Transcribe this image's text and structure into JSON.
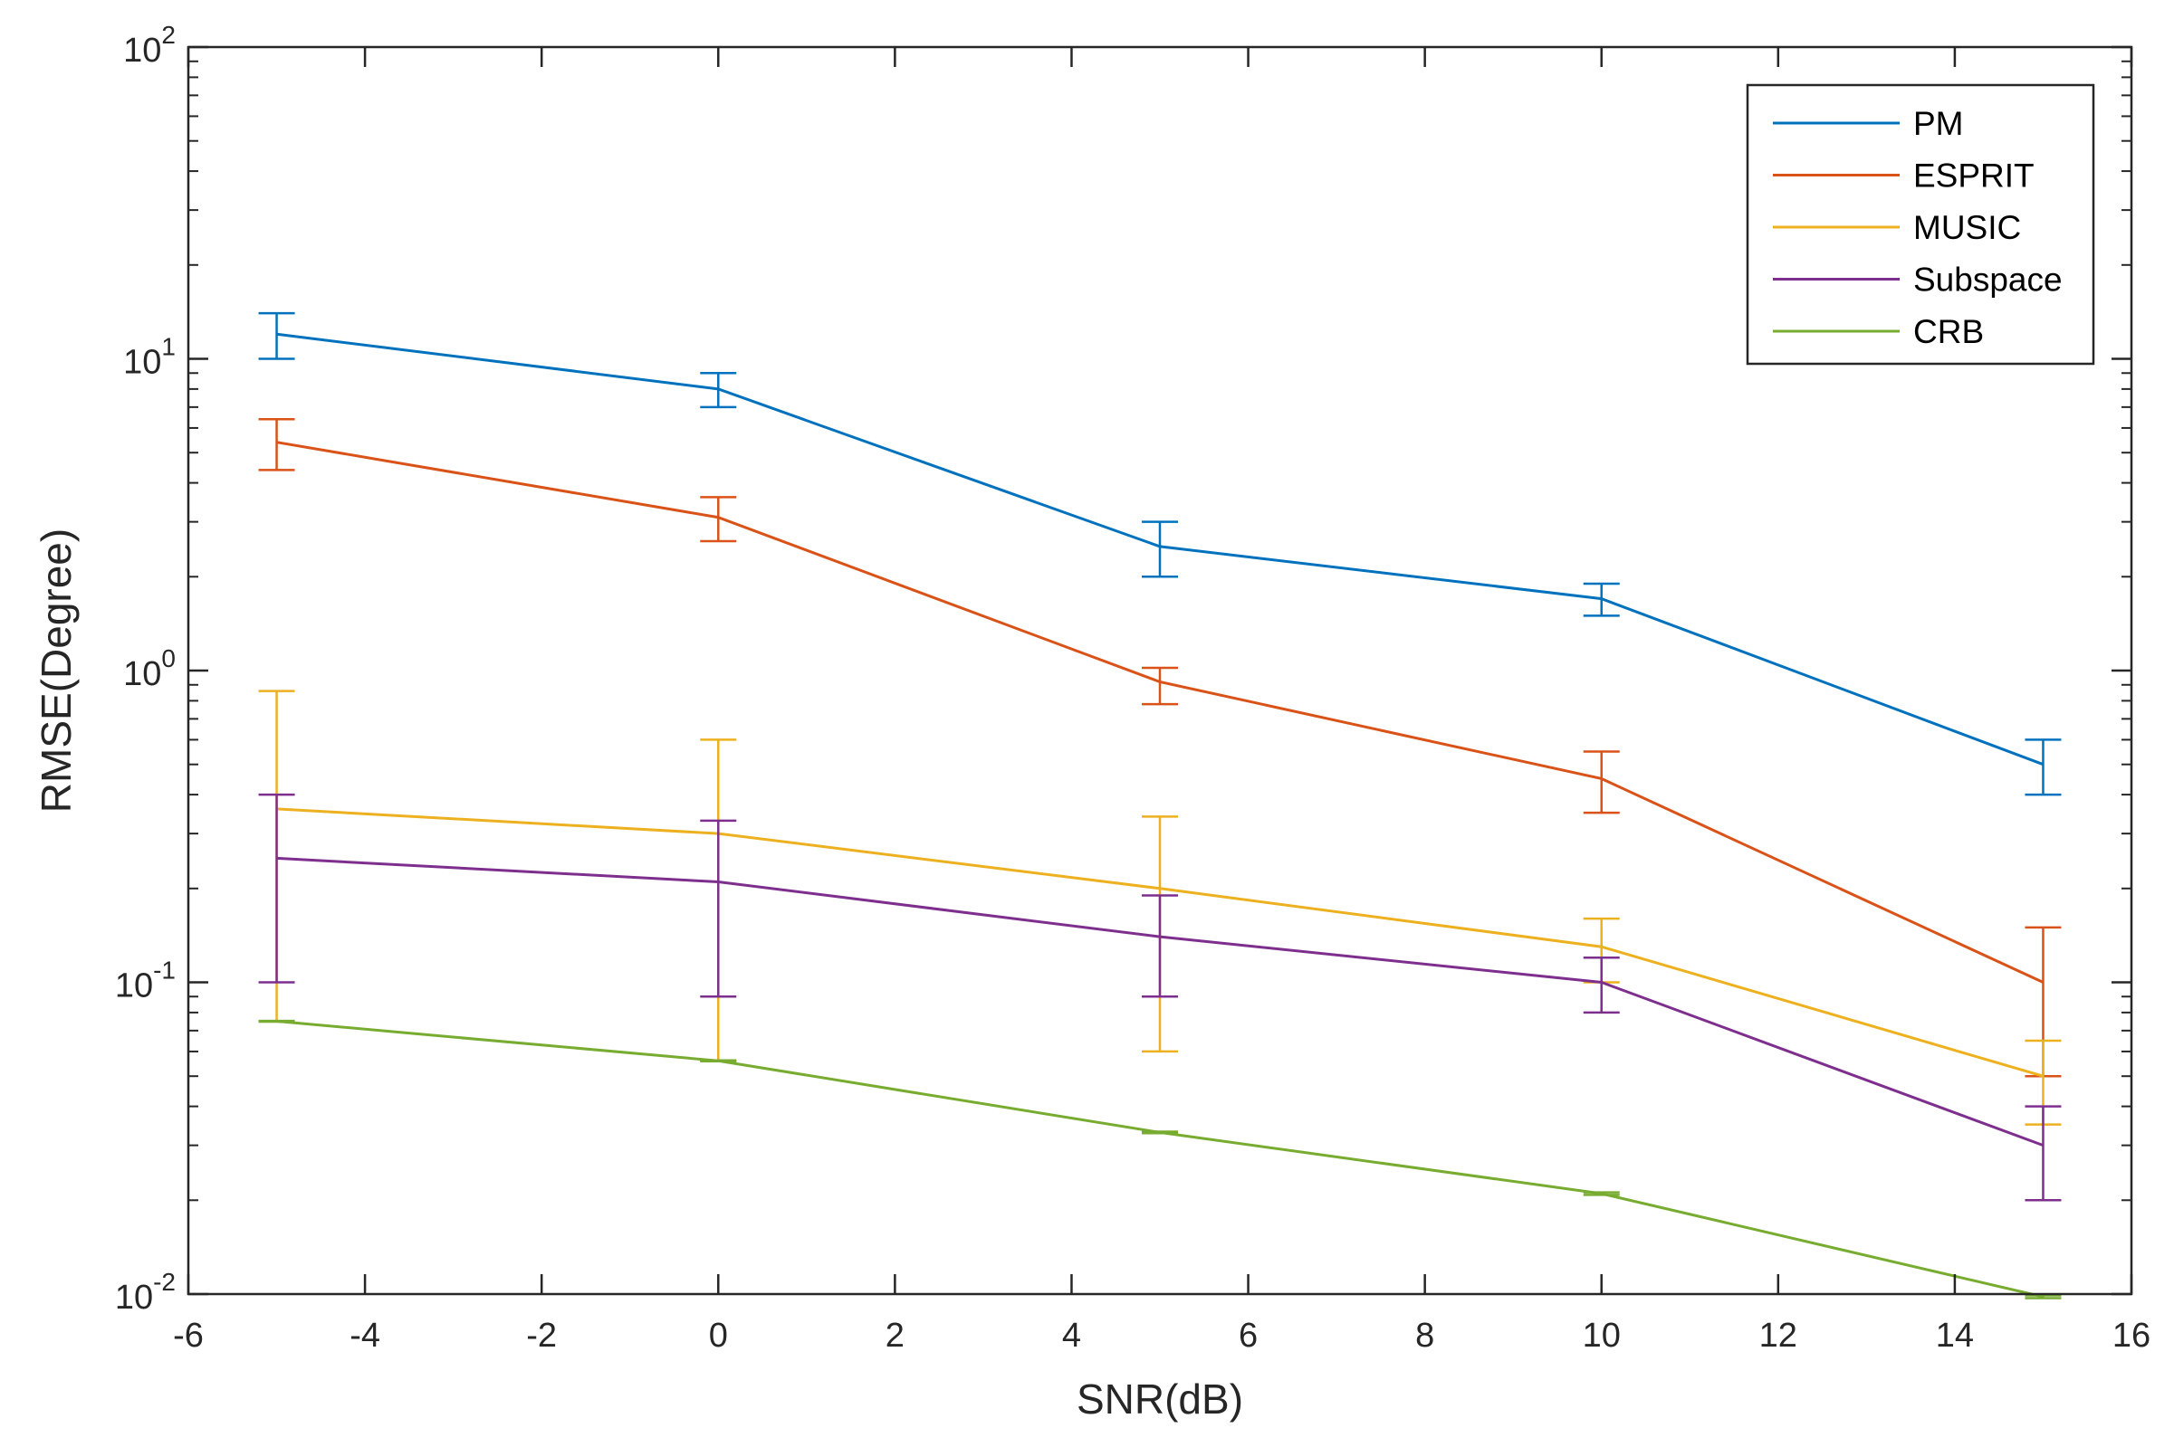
{
  "chart_data": {
    "type": "line",
    "xlabel": "SNR(dB)",
    "ylabel": "RMSE(Degree)",
    "xlim": [
      -6,
      16
    ],
    "ylim": [
      0.01,
      100
    ],
    "yscale": "log",
    "x_ticks": [
      "-6",
      "-4",
      "-2",
      "0",
      "2",
      "4",
      "6",
      "8",
      "10",
      "12",
      "14",
      "16"
    ],
    "y_ticks": [
      {
        "base": "10",
        "exp": "2",
        "value": 100
      },
      {
        "base": "10",
        "exp": "1",
        "value": 10
      },
      {
        "base": "10",
        "exp": "0",
        "value": 1
      },
      {
        "base": "10",
        "exp": "-1",
        "value": 0.1
      },
      {
        "base": "10",
        "exp": "-2",
        "value": 0.01
      }
    ],
    "grid": false,
    "box": true,
    "legend_position": "top-right",
    "x": [
      -5,
      0,
      5,
      10,
      15
    ],
    "series": [
      {
        "name": "PM",
        "color": "#0072BD",
        "values": [
          12.0,
          8.0,
          2.5,
          1.7,
          0.5
        ],
        "lower": [
          10.0,
          7.0,
          2.0,
          1.5,
          0.4
        ],
        "upper": [
          14.0,
          9.0,
          3.0,
          1.9,
          0.6
        ]
      },
      {
        "name": "ESPRIT",
        "color": "#D95319",
        "values": [
          5.4,
          3.1,
          0.92,
          0.45,
          0.1
        ],
        "lower": [
          4.4,
          2.6,
          0.78,
          0.35,
          0.05
        ],
        "upper": [
          6.4,
          3.6,
          1.02,
          0.55,
          0.15
        ]
      },
      {
        "name": "MUSIC",
        "color": "#EDB120",
        "values": [
          0.36,
          0.3,
          0.2,
          0.13,
          0.05
        ],
        "lower": [
          0.075,
          0.056,
          0.06,
          0.1,
          0.035
        ],
        "upper": [
          0.86,
          0.6,
          0.34,
          0.16,
          0.065
        ]
      },
      {
        "name": "Subspace",
        "color": "#7E2F8E",
        "values": [
          0.25,
          0.21,
          0.14,
          0.1,
          0.03
        ],
        "lower": [
          0.1,
          0.09,
          0.09,
          0.08,
          0.02
        ],
        "upper": [
          0.4,
          0.33,
          0.19,
          0.12,
          0.04
        ]
      },
      {
        "name": "CRB",
        "color": "#77AC30",
        "values": [
          0.075,
          0.056,
          0.033,
          0.021,
          0.0098
        ],
        "lower": [
          0.0748,
          0.0558,
          0.0328,
          0.0208,
          0.0097
        ],
        "upper": [
          0.0752,
          0.0562,
          0.0332,
          0.0212,
          0.0099
        ]
      }
    ]
  }
}
